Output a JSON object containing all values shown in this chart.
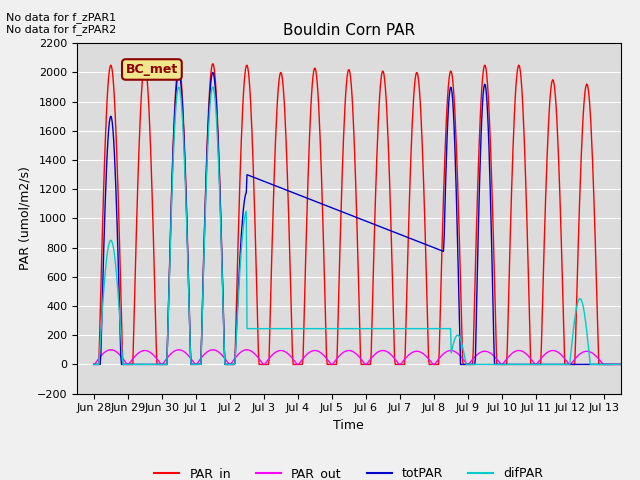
{
  "title": "Bouldin Corn PAR",
  "xlabel": "Time",
  "ylabel": "PAR (umol/m2/s)",
  "ylim": [
    -200,
    2200
  ],
  "annotation1": "No data for f_zPAR1",
  "annotation2": "No data for f_zPAR2",
  "legend_label": "BC_met",
  "plot_bg_color": "#dcdcdc",
  "fig_bg_color": "#f0f0f0",
  "series_colors": {
    "PAR_in": "#ff0000",
    "PAR_out": "#ff00ff",
    "totPAR": "#0000cc",
    "difPAR": "#00cccc"
  },
  "xtick_labels": [
    "Jun 28",
    "Jun 29",
    "Jun 30",
    "Jul 1",
    "Jul 2",
    "Jul 3",
    "Jul 4",
    "Jul 5",
    "Jul 6",
    "Jul 7",
    "Jul 8",
    "Jul 9",
    "Jul 10",
    "Jul 11",
    "Jul 12",
    "Jul 13"
  ],
  "yticks": [
    -200,
    0,
    200,
    400,
    600,
    800,
    1000,
    1200,
    1400,
    1600,
    1800,
    2000,
    2200
  ]
}
